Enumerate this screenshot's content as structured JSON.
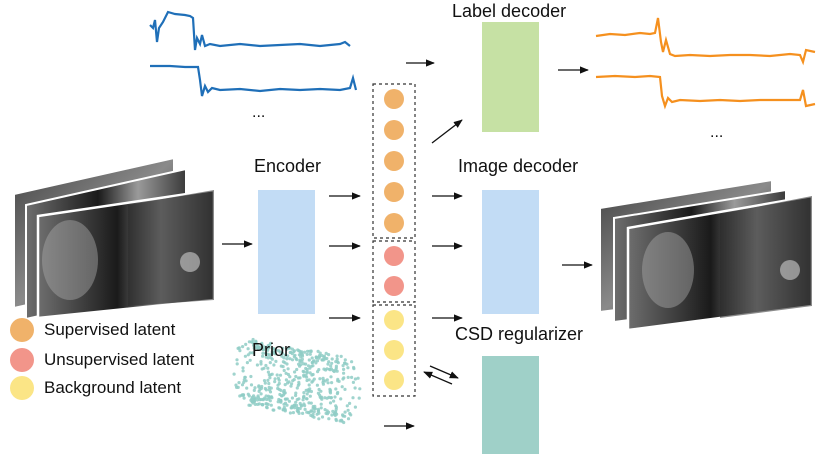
{
  "labels": {
    "label_decoder": "Label decoder",
    "encoder": "Encoder",
    "image_decoder": "Image decoder",
    "prior": "Prior",
    "csd_regularizer": "CSD regularizer",
    "ellipsis_input": "...",
    "ellipsis_output": "..."
  },
  "legend": [
    {
      "label": "Supervised latent",
      "color": "#f0b26a"
    },
    {
      "label": "Unsupervised latent",
      "color": "#f2958a"
    },
    {
      "label": "Background latent",
      "color": "#fbe586"
    }
  ],
  "colors": {
    "input_trace": "#1f6fb8",
    "output_trace": "#f5901e",
    "encoder_box": "#c2dcf5",
    "label_decoder_box": "#c6e1a4",
    "image_decoder_box": "#c2dcf5",
    "csd_box": "#9fd0c8",
    "prior_cloud": "#8fcdc6"
  },
  "latent_groups": {
    "supervised_count": 5,
    "unsupervised_count": 2,
    "background_count": 3
  }
}
